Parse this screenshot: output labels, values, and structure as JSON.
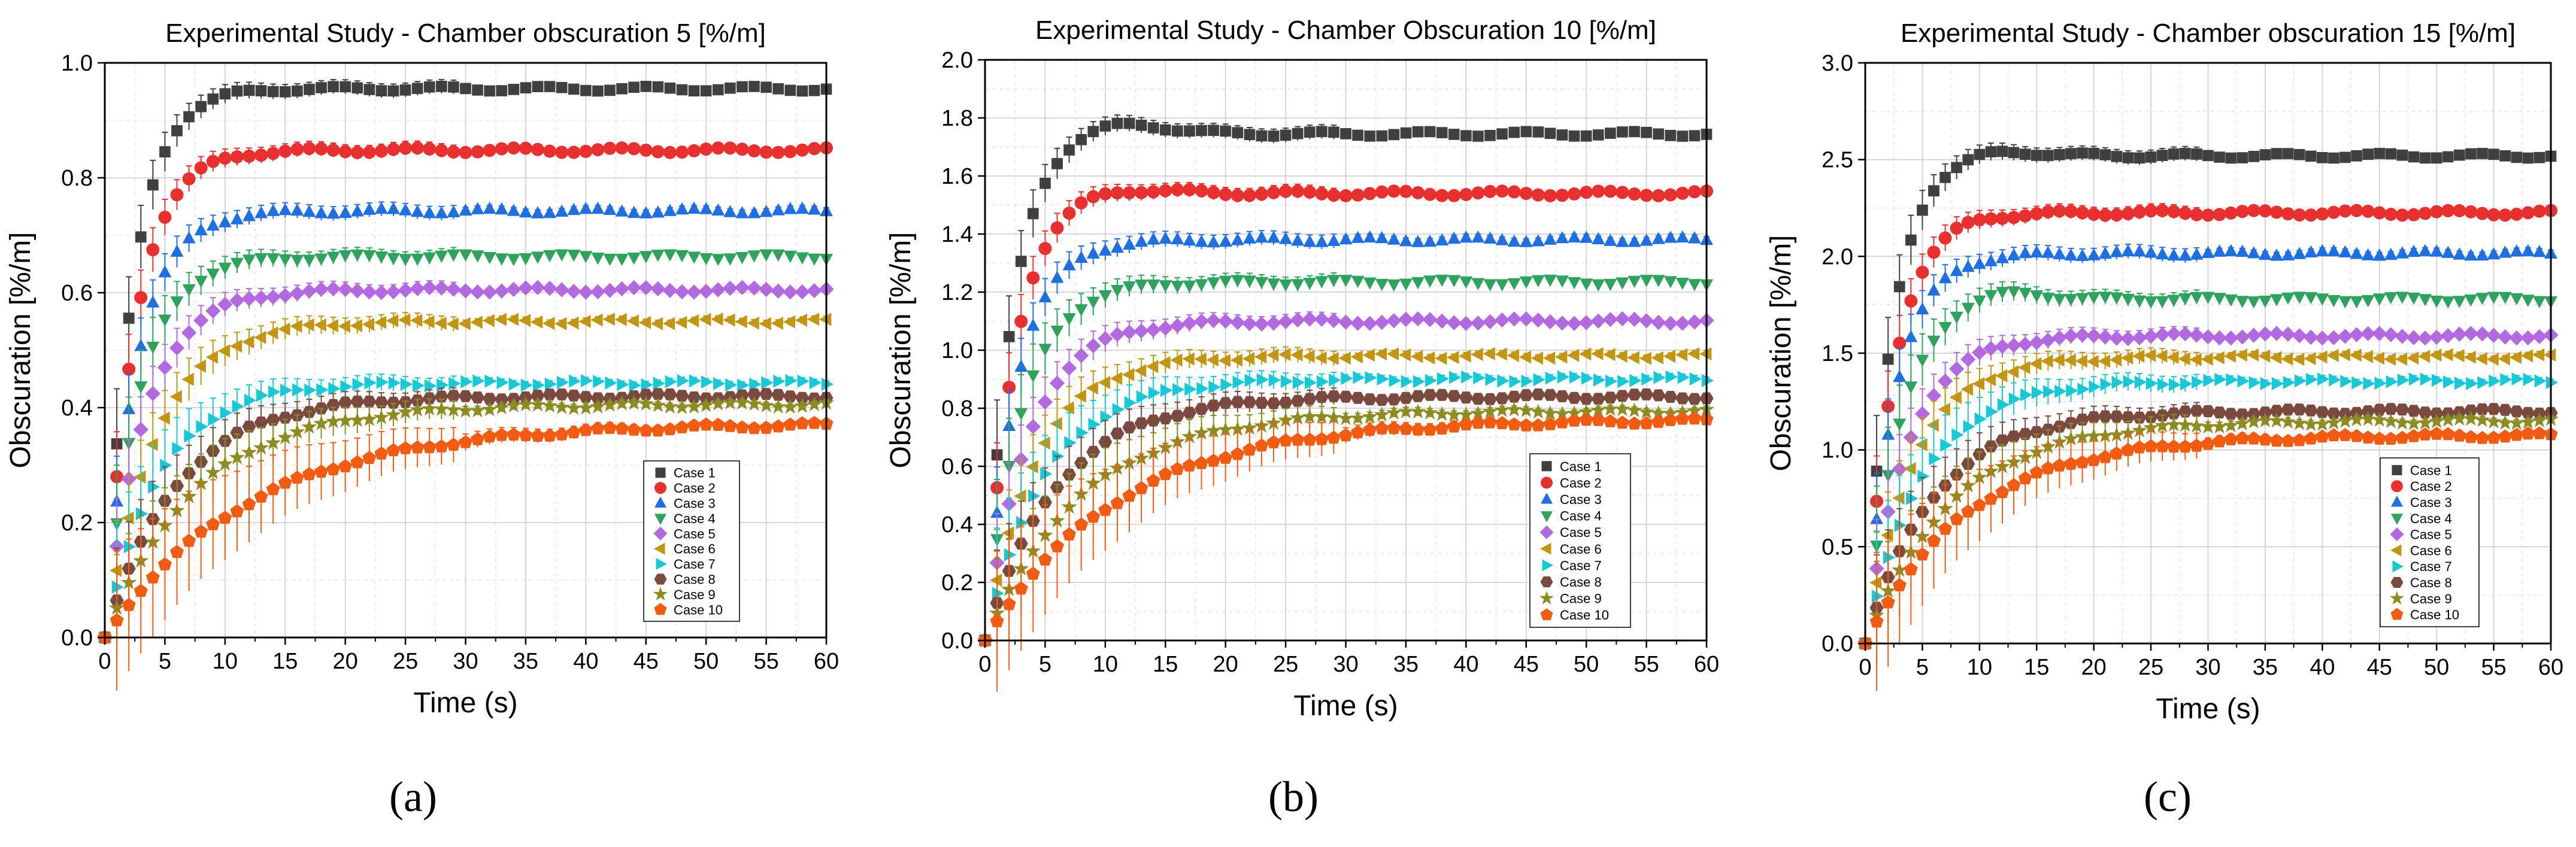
{
  "figure": {
    "panel_labels": [
      "(a)",
      "(b)",
      "(c)"
    ],
    "case_colors": {
      "Case 1": "#404040",
      "Case 2": "#E8312F",
      "Case 3": "#1F6FE0",
      "Case 4": "#2FA35E",
      "Case 5": "#B36AE0",
      "Case 6": "#C29612",
      "Case 7": "#19C8D6",
      "Case 8": "#7A4A3F",
      "Case 9": "#8C8C22",
      "Case 10": "#F25C12"
    },
    "case_markers": {
      "Case 1": "square",
      "Case 2": "circle",
      "Case 3": "triangle-up",
      "Case 4": "triangle-down",
      "Case 5": "diamond",
      "Case 6": "triangle-left",
      "Case 7": "triangle-right",
      "Case 8": "hexagon",
      "Case 9": "star",
      "Case 10": "pentagon"
    }
  },
  "chart_data": [
    {
      "type": "scatter",
      "panel": "(a)",
      "title": "Experimental Study - Chamber obscuration 5 [%/m]",
      "xlabel": "Time (s)",
      "ylabel": "Obscuration [%/m]",
      "xlim": [
        0,
        60
      ],
      "ylim": [
        0,
        1.0
      ],
      "xticks": [
        0,
        5,
        10,
        15,
        20,
        25,
        30,
        35,
        40,
        45,
        50,
        55,
        60
      ],
      "yticks": [
        0.0,
        0.2,
        0.4,
        0.6,
        0.8,
        1.0
      ],
      "ytick_labels": [
        "0.0",
        "0.2",
        "0.4",
        "0.6",
        "0.8",
        "1.0"
      ],
      "grid": true,
      "legend_position": "bottom-right",
      "series": [
        {
          "name": "Case 1",
          "final": 0.955,
          "tau": 2.3,
          "overshoot": 0
        },
        {
          "name": "Case 2",
          "final": 0.848,
          "tau": 2.5,
          "overshoot": 0
        },
        {
          "name": "Case 3",
          "final": 0.742,
          "tau": 2.6,
          "overshoot": 0
        },
        {
          "name": "Case 4",
          "final": 0.663,
          "tau": 2.8,
          "overshoot": 0
        },
        {
          "name": "Case 5",
          "final": 0.605,
          "tau": 3.3,
          "overshoot": 0
        },
        {
          "name": "Case 6",
          "final": 0.55,
          "tau": 4.2,
          "overshoot": 0
        },
        {
          "name": "Case 7",
          "final": 0.443,
          "tau": 4.5,
          "overshoot": 0
        },
        {
          "name": "Case 8",
          "final": 0.42,
          "tau": 6.0,
          "overshoot": 0
        },
        {
          "name": "Case 9",
          "final": 0.405,
          "tau": 7.5,
          "overshoot": 0
        },
        {
          "name": "Case 10",
          "final": 0.372,
          "tau": 12.0,
          "overshoot": 0
        }
      ]
    },
    {
      "type": "scatter",
      "panel": "(b)",
      "title": "Experimental Study - Chamber Obscuration 10 [%/m]",
      "xlabel": "Time (s)",
      "ylabel": "Obscuration [%/m]",
      "xlim": [
        0,
        60
      ],
      "ylim": [
        0,
        2.0
      ],
      "xticks": [
        0,
        5,
        10,
        15,
        20,
        25,
        30,
        35,
        40,
        45,
        50,
        55,
        60
      ],
      "yticks": [
        0.0,
        0.2,
        0.4,
        0.6,
        0.8,
        1.0,
        1.2,
        1.4,
        1.6,
        1.8,
        2.0
      ],
      "ytick_labels": [
        "0.0",
        "0.2",
        "0.4",
        "0.6",
        "0.8",
        "1.0",
        "1.2",
        "1.4",
        "1.6",
        "1.8",
        "2.0"
      ],
      "grid": true,
      "legend_position": "bottom-right",
      "series": [
        {
          "name": "Case 1",
          "final": 1.745,
          "tau": 2.2,
          "overshoot": 0.02
        },
        {
          "name": "Case 2",
          "final": 1.54,
          "tau": 2.4,
          "overshoot": 0.01
        },
        {
          "name": "Case 3",
          "final": 1.38,
          "tau": 2.6,
          "overshoot": 0
        },
        {
          "name": "Case 4",
          "final": 1.235,
          "tau": 3.0,
          "overshoot": 0
        },
        {
          "name": "Case 5",
          "final": 1.1,
          "tau": 3.6,
          "overshoot": 0
        },
        {
          "name": "Case 6",
          "final": 0.98,
          "tau": 4.2,
          "overshoot": 0
        },
        {
          "name": "Case 7",
          "final": 0.9,
          "tau": 5.0,
          "overshoot": 0
        },
        {
          "name": "Case 8",
          "final": 0.84,
          "tau": 6.0,
          "overshoot": 0
        },
        {
          "name": "Case 9",
          "final": 0.79,
          "tau": 8.0,
          "overshoot": 0
        },
        {
          "name": "Case 10",
          "final": 0.76,
          "tau": 11.0,
          "overshoot": 0
        }
      ]
    },
    {
      "type": "scatter",
      "panel": "(c)",
      "title": "Experimental Study - Chamber obscuration 15 [%/m]",
      "xlabel": "Time (s)",
      "ylabel": "Obscuration [%/m]",
      "xlim": [
        0,
        60
      ],
      "ylim": [
        0,
        3.0
      ],
      "xticks": [
        0,
        5,
        10,
        15,
        20,
        25,
        30,
        35,
        40,
        45,
        50,
        55,
        60
      ],
      "yticks": [
        0.0,
        0.5,
        1.0,
        1.5,
        2.0,
        2.5,
        3.0
      ],
      "ytick_labels": [
        "0.0",
        "0.5",
        "1.0",
        "1.5",
        "2.0",
        "2.5",
        "3.0"
      ],
      "grid": true,
      "legend_position": "bottom-right",
      "series": [
        {
          "name": "Case 1",
          "final": 2.52,
          "tau": 2.3,
          "overshoot": 0.01
        },
        {
          "name": "Case 2",
          "final": 2.225,
          "tau": 2.5,
          "overshoot": 0
        },
        {
          "name": "Case 3",
          "final": 2.015,
          "tau": 2.6,
          "overshoot": 0
        },
        {
          "name": "Case 4",
          "final": 1.78,
          "tau": 3.0,
          "overshoot": 0.02
        },
        {
          "name": "Case 5",
          "final": 1.59,
          "tau": 3.6,
          "overshoot": 0
        },
        {
          "name": "Case 6",
          "final": 1.48,
          "tau": 4.2,
          "overshoot": 0
        },
        {
          "name": "Case 7",
          "final": 1.355,
          "tau": 5.0,
          "overshoot": 0
        },
        {
          "name": "Case 8",
          "final": 1.2,
          "tau": 6.0,
          "overshoot": 0
        },
        {
          "name": "Case 9",
          "final": 1.15,
          "tau": 7.5,
          "overshoot": 0
        },
        {
          "name": "Case 10",
          "final": 1.075,
          "tau": 9.0,
          "overshoot": 0
        }
      ]
    }
  ]
}
